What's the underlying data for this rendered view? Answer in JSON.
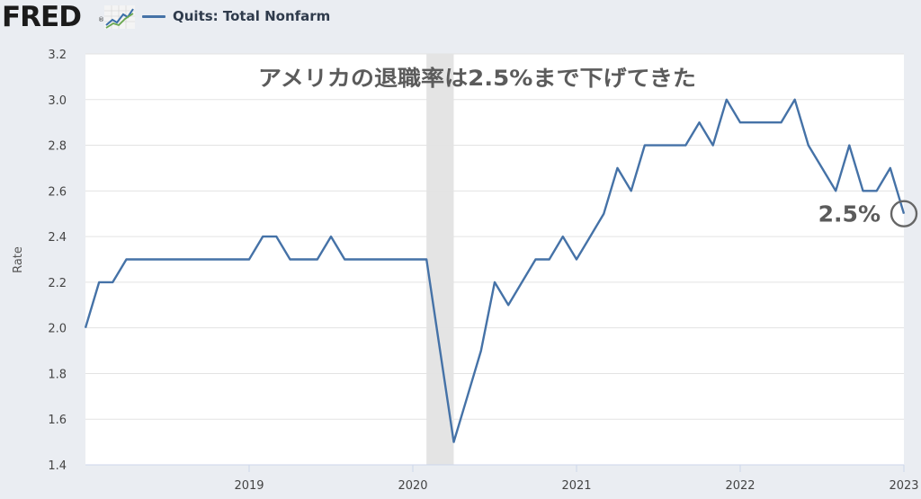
{
  "header": {
    "logo_text": "FRED",
    "logo_mark": "®",
    "logo_icon": "line-chart-icon",
    "legend_label": "Quits: Total Nonfarm"
  },
  "colors": {
    "series": "#4572a7",
    "background": "#eaedf2",
    "plot": "#ffffff",
    "recession": "#e4e4e4",
    "grid": "#e3e3e3",
    "annotation": "#5b5b5b"
  },
  "chart_data": {
    "type": "line",
    "title": "アメリカの退職率は2.5%まで下げてきた",
    "ylabel": "Rate",
    "xlabel": "",
    "ylim": [
      1.4,
      3.2
    ],
    "yticks": [
      "1.4",
      "1.6",
      "1.8",
      "2.0",
      "2.2",
      "2.4",
      "2.6",
      "2.8",
      "3.0",
      "3.2"
    ],
    "xlim": [
      "2018-01",
      "2023-01"
    ],
    "xticks": [
      "2019",
      "2020",
      "2021",
      "2022",
      "2023"
    ],
    "grid": "horizontal",
    "recession": [
      "2020-02",
      "2020-04"
    ],
    "series": [
      {
        "name": "Quits: Total Nonfarm",
        "x": [
          "2018-01",
          "2018-02",
          "2018-03",
          "2018-04",
          "2018-05",
          "2018-06",
          "2018-07",
          "2018-08",
          "2018-09",
          "2018-10",
          "2018-11",
          "2018-12",
          "2019-01",
          "2019-02",
          "2019-03",
          "2019-04",
          "2019-05",
          "2019-06",
          "2019-07",
          "2019-08",
          "2019-09",
          "2019-10",
          "2019-11",
          "2019-12",
          "2020-01",
          "2020-02",
          "2020-03",
          "2020-04",
          "2020-05",
          "2020-06",
          "2020-07",
          "2020-08",
          "2020-09",
          "2020-10",
          "2020-11",
          "2020-12",
          "2021-01",
          "2021-02",
          "2021-03",
          "2021-04",
          "2021-05",
          "2021-06",
          "2021-07",
          "2021-08",
          "2021-09",
          "2021-10",
          "2021-11",
          "2021-12",
          "2022-01",
          "2022-02",
          "2022-03",
          "2022-04",
          "2022-05",
          "2022-06",
          "2022-07",
          "2022-08",
          "2022-09",
          "2022-10",
          "2022-11",
          "2022-12",
          "2023-01"
        ],
        "values": [
          2.0,
          2.2,
          2.2,
          2.3,
          2.3,
          2.3,
          2.3,
          2.3,
          2.3,
          2.3,
          2.3,
          2.3,
          2.3,
          2.4,
          2.4,
          2.3,
          2.3,
          2.3,
          2.4,
          2.3,
          2.3,
          2.3,
          2.3,
          2.3,
          2.3,
          2.3,
          1.9,
          1.5,
          1.7,
          1.9,
          2.2,
          2.1,
          2.2,
          2.3,
          2.3,
          2.4,
          2.3,
          2.4,
          2.5,
          2.7,
          2.6,
          2.8,
          2.8,
          2.8,
          2.8,
          2.9,
          2.8,
          3.0,
          2.9,
          2.9,
          2.9,
          2.9,
          3.0,
          2.8,
          2.7,
          2.6,
          2.8,
          2.6,
          2.6,
          2.7,
          2.5
        ]
      }
    ],
    "annotations": [
      {
        "text": "2.5%",
        "at_x": "2023-01",
        "at_y": 2.5,
        "marker": "circle"
      }
    ]
  }
}
